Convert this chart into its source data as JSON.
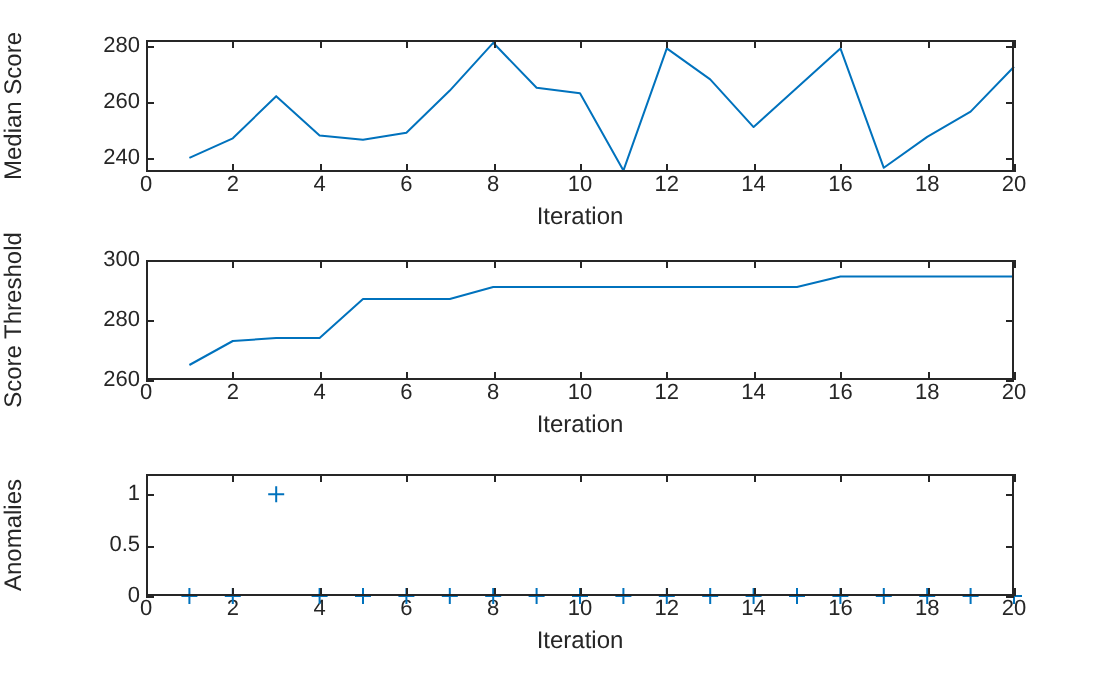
{
  "chart_data": [
    {
      "type": "line",
      "xlabel": "Iteration",
      "ylabel": "Median Score",
      "x": [
        1,
        2,
        3,
        4,
        5,
        6,
        7,
        8,
        9,
        10,
        11,
        12,
        13,
        14,
        15,
        16,
        17,
        18,
        19,
        20
      ],
      "series": [
        {
          "color": "#0072bd",
          "values": [
            240,
            247,
            262,
            248,
            246.5,
            249,
            264,
            281,
            265,
            263,
            235.5,
            279,
            268,
            251,
            265,
            279,
            236.5,
            247.5,
            256.5,
            272.5
          ]
        }
      ],
      "xlim": [
        0,
        20
      ],
      "xticks": [
        0,
        2,
        4,
        6,
        8,
        10,
        12,
        14,
        16,
        18,
        20
      ],
      "ylim": [
        235,
        282
      ],
      "yticks": [
        240,
        260,
        280
      ],
      "grid": false,
      "legend": false
    },
    {
      "type": "line",
      "xlabel": "Iteration",
      "ylabel": "Score Threshold",
      "x": [
        1,
        2,
        3,
        4,
        5,
        6,
        7,
        8,
        9,
        10,
        11,
        12,
        13,
        14,
        15,
        16,
        17,
        18,
        19,
        20
      ],
      "series": [
        {
          "color": "#0072bd",
          "values": [
            265,
            273,
            274,
            274,
            287,
            287,
            287,
            291,
            291,
            291,
            291,
            291,
            291,
            291,
            291,
            294.5,
            294.5,
            294.5,
            294.5,
            294.5
          ]
        }
      ],
      "xlim": [
        0,
        20
      ],
      "xticks": [
        0,
        2,
        4,
        6,
        8,
        10,
        12,
        14,
        16,
        18,
        20
      ],
      "ylim": [
        260,
        300
      ],
      "yticks": [
        260,
        280,
        300
      ],
      "grid": false,
      "legend": false
    },
    {
      "type": "scatter",
      "xlabel": "Iteration",
      "ylabel": "Anomalies",
      "x": [
        1,
        2,
        3,
        4,
        5,
        6,
        7,
        8,
        9,
        10,
        11,
        12,
        13,
        14,
        15,
        16,
        17,
        18,
        19,
        20
      ],
      "series": [
        {
          "color": "#0072bd",
          "values": [
            0,
            0,
            1,
            0,
            0,
            0,
            0,
            0,
            0,
            0,
            0,
            0,
            0,
            0,
            0,
            0,
            0,
            0,
            0,
            0
          ]
        }
      ],
      "marker": "cross",
      "xlim": [
        0,
        20
      ],
      "xticks": [
        0,
        2,
        4,
        6,
        8,
        10,
        12,
        14,
        16,
        18,
        20
      ],
      "ylim": [
        0,
        1.2
      ],
      "yticks": [
        0,
        0.5,
        1
      ],
      "grid": false,
      "legend": false
    }
  ]
}
